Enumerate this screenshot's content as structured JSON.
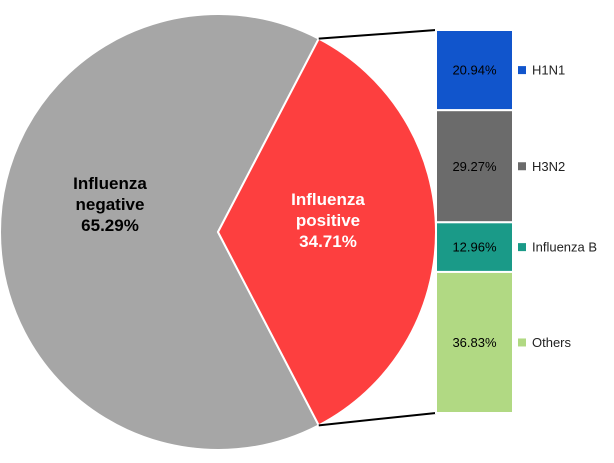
{
  "chart_data": {
    "type": "pie",
    "title": "",
    "pie": {
      "slices": [
        {
          "lines": [
            "Influenza",
            "negative"
          ],
          "value_label": "65.29%",
          "value": 65.29,
          "color": "#a6a6a6",
          "text_color": "#000000"
        },
        {
          "lines": [
            "Influenza",
            "positive"
          ],
          "value_label": "34.71%",
          "value": 34.71,
          "color": "#fd3f3f",
          "text_color": "#ffffff"
        }
      ]
    },
    "breakdown": {
      "type": "stacked-bar",
      "of_slice": "Influenza positive",
      "segments": [
        {
          "name": "H1N1",
          "value_label": "20.94%",
          "value": 20.94,
          "color": "#1155cc",
          "text_color": "#000000"
        },
        {
          "name": "H3N2",
          "value_label": "29.27%",
          "value": 29.27,
          "color": "#6b6b6b",
          "text_color": "#000000"
        },
        {
          "name": "Influenza B",
          "value_label": "12.96%",
          "value": 12.96,
          "color": "#1a9a88",
          "text_color": "#000000"
        },
        {
          "name": "Others",
          "value_label": "36.83%",
          "value": 36.83,
          "color": "#b1d983",
          "text_color": "#000000"
        }
      ]
    },
    "legend": {
      "position": "right-of-bar"
    }
  }
}
